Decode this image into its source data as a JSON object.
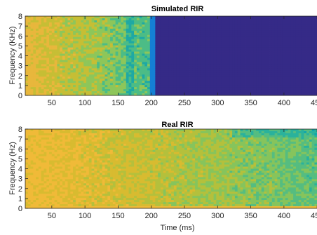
{
  "chart_data": [
    {
      "type": "heatmap",
      "title": "Simulated RIR",
      "xlabel": "",
      "ylabel": "Frequency (KHz)",
      "xlim": [
        10,
        490
      ],
      "ylim": [
        0,
        8
      ],
      "x_ticks": [
        50,
        100,
        150,
        200,
        250,
        300,
        350,
        400,
        450
      ],
      "x_tick_labels": [
        "50",
        "100",
        "150",
        "200",
        "250",
        "300",
        "350",
        "400",
        "450"
      ],
      "y_ticks": [
        0,
        1,
        2,
        3,
        4,
        5,
        6,
        7,
        8
      ],
      "y_tick_labels": [
        "0",
        "1",
        "2",
        "3",
        "4",
        "5",
        "6",
        "7",
        "8"
      ],
      "colormap": "parula",
      "signal_end_ms": 205,
      "background_color": "#352a87",
      "colors": [
        "#e8b73c",
        "#c6be35",
        "#8dc65a",
        "#4cbc86",
        "#1ea9a4",
        "#1580d4",
        "#352a87"
      ]
    },
    {
      "type": "heatmap",
      "title": "Real RIR",
      "xlabel": "Time (ms)",
      "ylabel": "Frequency (Hz)",
      "xlim": [
        10,
        490
      ],
      "ylim": [
        0,
        8
      ],
      "x_ticks": [
        50,
        100,
        150,
        200,
        250,
        300,
        350,
        400,
        450
      ],
      "x_tick_labels": [
        "50",
        "100",
        "150",
        "200",
        "250",
        "300",
        "350",
        "400",
        "450"
      ],
      "y_ticks": [
        0,
        1,
        2,
        3,
        4,
        5,
        6,
        7,
        8
      ],
      "y_tick_labels": [
        "0",
        "1",
        "2",
        "3",
        "4",
        "5",
        "6",
        "7",
        "8"
      ],
      "colormap": "parula",
      "colors": [
        "#f0ba38",
        "#d8bb30",
        "#b4c03c",
        "#86c45c",
        "#55bd80",
        "#2ab29c",
        "#12a6ac"
      ]
    }
  ]
}
